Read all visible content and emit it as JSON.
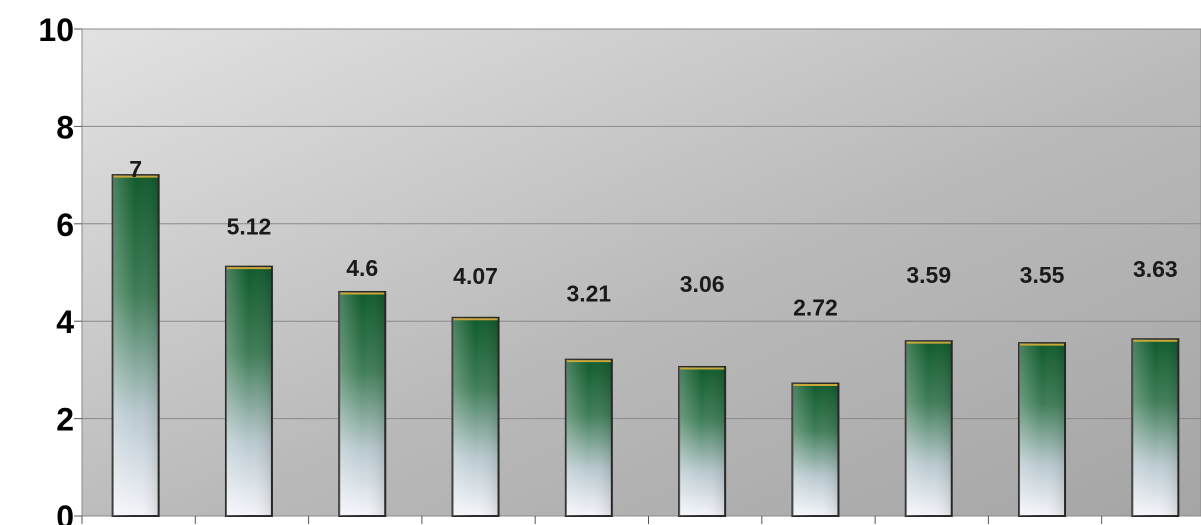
{
  "chart_data": {
    "type": "bar",
    "categories": [
      "",
      "",
      "",
      "",
      "",
      "",
      "",
      "",
      "",
      ""
    ],
    "values": [
      7,
      5.12,
      4.6,
      4.07,
      3.21,
      3.06,
      2.72,
      3.59,
      3.55,
      3.63
    ],
    "data_labels": [
      "7",
      "5.12",
      "4.6",
      "4.07",
      "3.21",
      "3.06",
      "2.72",
      "3.59",
      "3.55",
      "3.63"
    ],
    "title": "",
    "xlabel": "",
    "ylabel": "",
    "ylim": [
      0,
      10
    ],
    "y_ticks": [
      0,
      2,
      4,
      6,
      8,
      10
    ],
    "y_tick_labels": [
      "0",
      "2",
      "4",
      "6",
      "8",
      "10"
    ],
    "grid": true,
    "legend": "none",
    "colors": {
      "bar_top": "#0f5a2c",
      "bar_bottom": "#f2f4fa",
      "bar_outline": "#2a2a2a",
      "bar_cap": "#c7a83a",
      "plot_bg_light": "#d9d9d9",
      "plot_bg_dark": "#a8a8a8",
      "gridline": "#8a8a8a"
    }
  }
}
